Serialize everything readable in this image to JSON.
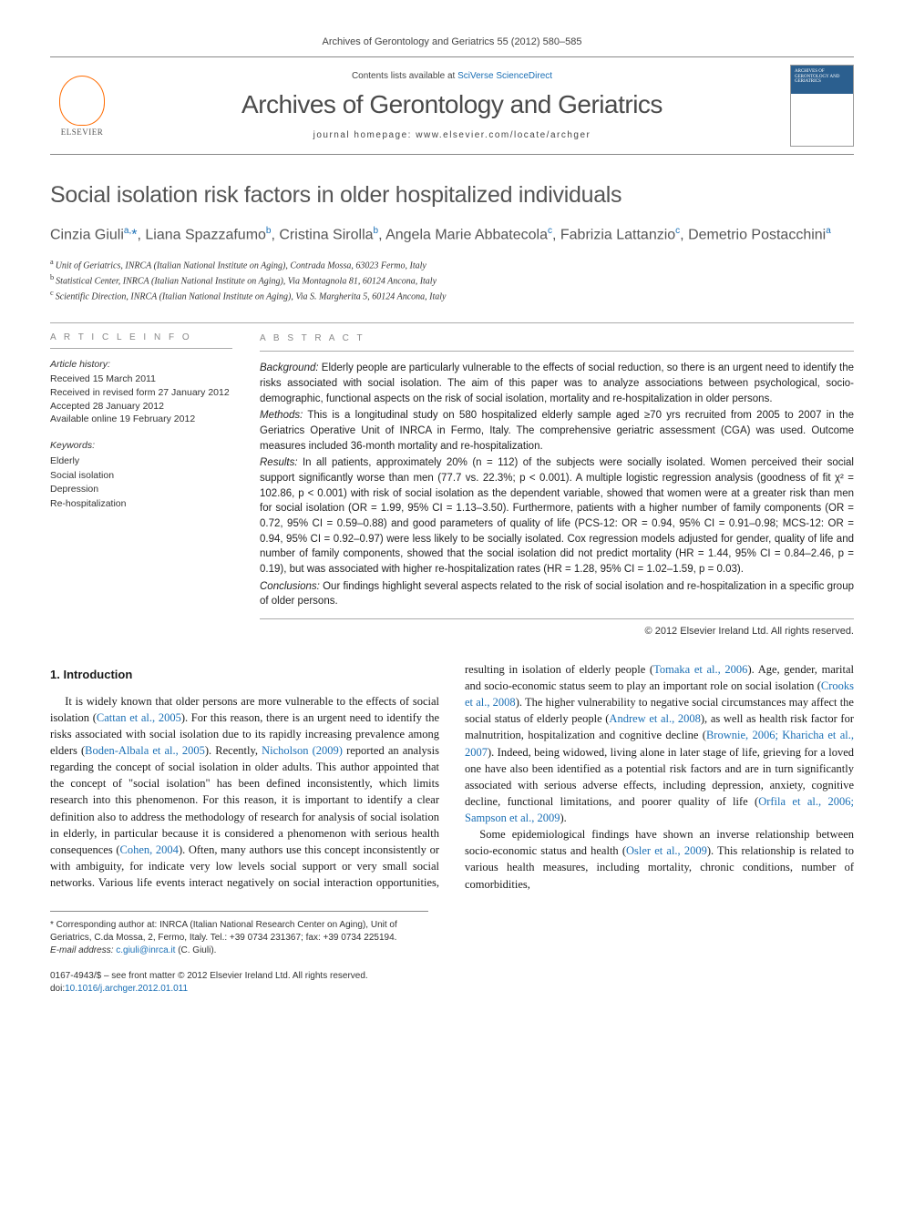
{
  "citation": "Archives of Gerontology and Geriatrics 55 (2012) 580–585",
  "header": {
    "contents_prefix": "Contents lists available at ",
    "contents_link": "SciVerse ScienceDirect",
    "journal": "Archives of Gerontology and Geriatrics",
    "homepage_prefix": "journal homepage: ",
    "homepage_url": "www.elsevier.com/locate/archger",
    "publisher": "ELSEVIER",
    "cover_text": "ARCHIVES OF GERONTOLOGY AND GERIATRICS"
  },
  "title": "Social isolation risk factors in older hospitalized individuals",
  "authors_html": "Cinzia Giuli<sup>a,</sup><span class='ast'>*</span>, Liana Spazzafumo<sup>b</sup>, Cristina Sirolla<sup>b</sup>, Angela Marie Abbatecola<sup>c</sup>, Fabrizia Lattanzio<sup>c</sup>, Demetrio Postacchini<sup>a</sup>",
  "affiliations": {
    "a": "Unit of Geriatrics, INRCA (Italian National Institute on Aging), Contrada Mossa, 63023 Fermo, Italy",
    "b": "Statistical Center, INRCA (Italian National Institute on Aging), Via Montagnola 81, 60124 Ancona, Italy",
    "c": "Scientific Direction, INRCA (Italian National Institute on Aging), Via S. Margherita 5, 60124 Ancona, Italy"
  },
  "article_info": {
    "heading": "A R T I C L E   I N F O",
    "history_label": "Article history:",
    "received": "Received 15 March 2011",
    "revised": "Received in revised form 27 January 2012",
    "accepted": "Accepted 28 January 2012",
    "online": "Available online 19 February 2012",
    "keywords_label": "Keywords:",
    "keywords": [
      "Elderly",
      "Social isolation",
      "Depression",
      "Re-hospitalization"
    ]
  },
  "abstract": {
    "heading": "A B S T R A C T",
    "background_label": "Background:",
    "background": " Elderly people are particularly vulnerable to the effects of social reduction, so there is an urgent need to identify the risks associated with social isolation. The aim of this paper was to analyze associations between psychological, socio-demographic, functional aspects on the risk of social isolation, mortality and re-hospitalization in older persons.",
    "methods_label": "Methods:",
    "methods": " This is a longitudinal study on 580 hospitalized elderly sample aged ≥70 yrs recruited from 2005 to 2007 in the Geriatrics Operative Unit of INRCA in Fermo, Italy. The comprehensive geriatric assessment (CGA) was used. Outcome measures included 36-month mortality and re-hospitalization.",
    "results_label": "Results:",
    "results": " In all patients, approximately 20% (n = 112) of the subjects were socially isolated. Women perceived their social support significantly worse than men (77.7 vs. 22.3%; p < 0.001). A multiple logistic regression analysis (goodness of fit χ² = 102.86, p < 0.001) with risk of social isolation as the dependent variable, showed that women were at a greater risk than men for social isolation (OR = 1.99, 95% CI = 1.13–3.50). Furthermore, patients with a higher number of family components (OR = 0.72, 95% CI = 0.59–0.88) and good parameters of quality of life (PCS-12: OR = 0.94, 95% CI = 0.91–0.98; MCS-12: OR = 0.94, 95% CI = 0.92–0.97) were less likely to be socially isolated. Cox regression models adjusted for gender, quality of life and number of family components, showed that the social isolation did not predict mortality (HR = 1.44, 95% CI = 0.84–2.46, p = 0.19), but was associated with higher re-hospitalization rates (HR = 1.28, 95% CI = 1.02–1.59, p = 0.03).",
    "conclusions_label": "Conclusions:",
    "conclusions": " Our findings highlight several aspects related to the risk of social isolation and re-hospitalization in a specific group of older persons.",
    "copyright": "© 2012 Elsevier Ireland Ltd. All rights reserved."
  },
  "body": {
    "section1_heading": "1. Introduction",
    "p1a": "It is widely known that older persons are more vulnerable to the effects of social isolation (",
    "p1_ref1": "Cattan et al., 2005",
    "p1b": "). For this reason, there is an urgent need to identify the risks associated with social isolation due to its rapidly increasing prevalence among elders (",
    "p1_ref2": "Boden-Albala et al., 2005",
    "p1c": "). Recently, ",
    "p1_ref3": "Nicholson (2009)",
    "p1d": " reported an analysis regarding the concept of social isolation in older adults. This author appointed that the concept of \"social isolation\" has been defined inconsistently, which limits research into this phenomenon. For this reason, it is important to identify a clear definition also to address the methodology of research for analysis of social isolation in elderly, in particular because it is considered a phenomenon with serious health consequences (",
    "p1_ref4": "Cohen, 2004",
    "p1e": "). Often, many authors use this concept inconsistently or with ambiguity, for indicate very low levels social support or very small social networks. Various life events interact negatively on social interaction opportunities, resulting in isolation of elderly people (",
    "p1_ref5": "Tomaka et al., 2006",
    "p1f": "). Age, gender, marital and socio-economic status seem to play an important role on social isolation (",
    "p1_ref6": "Crooks et al., 2008",
    "p1g": "). The higher vulnerability to negative social circumstances may affect the social status of elderly people (",
    "p1_ref7": "Andrew et al., 2008",
    "p1h": "), as well as health risk factor for malnutrition, hospitalization and cognitive decline (",
    "p1_ref8": "Brownie, 2006; Kharicha et al., 2007",
    "p1i": "). Indeed, being widowed, living alone in later stage of life, grieving for a loved one have also been identified as a potential risk factors and are in turn significantly associated with serious adverse effects, including depression, anxiety, cognitive decline, functional limitations, and poorer quality of life (",
    "p1_ref9": "Orfila et al., 2006; Sampson et al., 2009",
    "p1j": ").",
    "p2a": "Some epidemiological findings have shown an inverse relationship between socio-economic status and health (",
    "p2_ref1": "Osler et al., 2009",
    "p2b": "). This relationship is related to various health measures, including mortality, chronic conditions, number of comorbidities,"
  },
  "footnote": {
    "corr_label": "* Corresponding author at: ",
    "corr_text": "INRCA (Italian National Research Center on Aging), Unit of Geriatrics, C.da Mossa, 2, Fermo, Italy. Tel.: +39 0734 231367; fax: +39 0734 225194.",
    "email_label": "E-mail address: ",
    "email": "c.giuli@inrca.it",
    "email_suffix": " (C. Giuli)."
  },
  "bottom": {
    "issn": "0167-4943/$ – see front matter © 2012 Elsevier Ireland Ltd. All rights reserved.",
    "doi_label": "doi:",
    "doi": "10.1016/j.archger.2012.01.011"
  }
}
